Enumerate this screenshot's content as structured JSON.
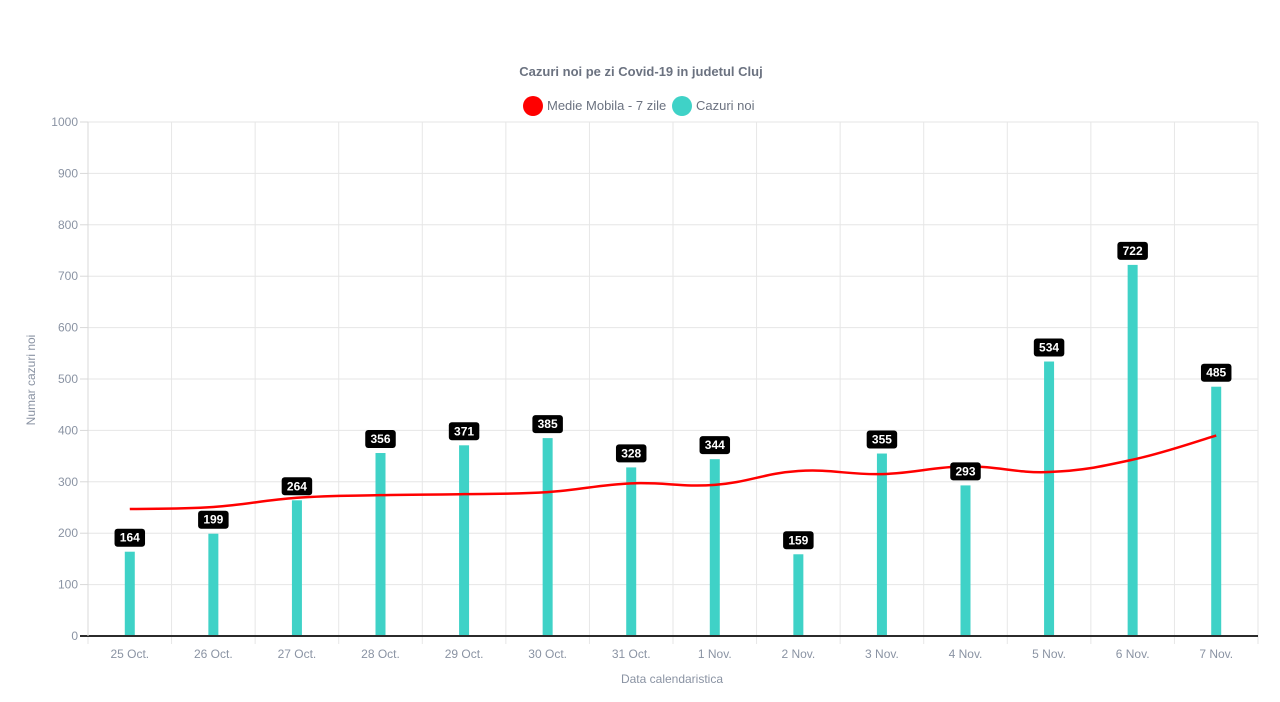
{
  "chart_data": {
    "type": "bar",
    "title": "Cazuri noi pe zi Covid-19 in judetul Cluj",
    "xlabel": "Data calendaristica",
    "ylabel": "Numar cazuri noi",
    "ylim": [
      0,
      1000
    ],
    "yticks": [
      0,
      100,
      200,
      300,
      400,
      500,
      600,
      700,
      800,
      900,
      1000
    ],
    "grid": true,
    "legend_position": "top",
    "categories": [
      "25 Oct.",
      "26 Oct.",
      "27 Oct.",
      "28 Oct.",
      "29 Oct.",
      "30 Oct.",
      "31 Oct.",
      "1 Nov.",
      "2 Nov.",
      "3 Nov.",
      "4 Nov.",
      "5 Nov.",
      "6 Nov.",
      "7 Nov."
    ],
    "series": [
      {
        "name": "Medie Mobila - 7 zile",
        "type": "line",
        "color": "#ff0000",
        "values": [
          247,
          251,
          269,
          274,
          276,
          280,
          297,
          294,
          321,
          315,
          330,
          319,
          343,
          390
        ]
      },
      {
        "name": "Cazuri noi",
        "type": "bar",
        "color": "#3fd2c7",
        "values": [
          164,
          199,
          264,
          356,
          371,
          385,
          328,
          344,
          159,
          355,
          293,
          534,
          722,
          485
        ]
      }
    ]
  }
}
